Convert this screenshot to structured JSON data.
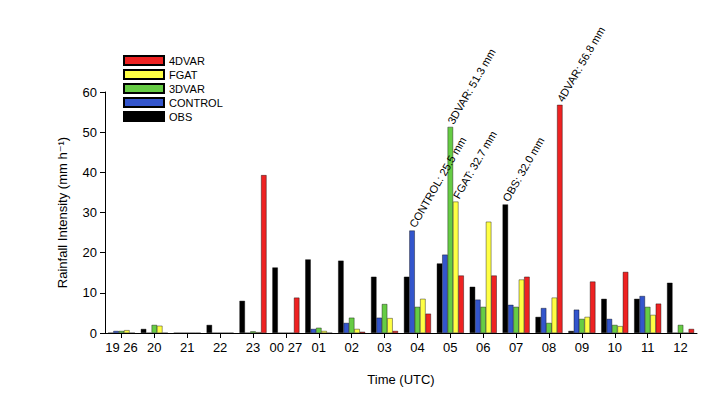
{
  "chart_data": {
    "type": "bar",
    "x_label": "Time (UTC)",
    "y_label": "Rainfall Intensity (mm h⁻¹)",
    "categories": [
      "19 26",
      "20",
      "21",
      "22",
      "23",
      "00 27",
      "01",
      "02",
      "03",
      "04",
      "05",
      "06",
      "07",
      "08",
      "09",
      "10",
      "11",
      "12"
    ],
    "series": [
      {
        "name": "OBS",
        "color": "#000000",
        "values": [
          0,
          1.0,
          0,
          2.0,
          8.0,
          16.3,
          18.3,
          18.0,
          14.0,
          14.0,
          17.3,
          11.5,
          32.0,
          4.0,
          0.5,
          8.5,
          8.5,
          12.5
        ]
      },
      {
        "name": "CONTROL",
        "color": "#3355cc",
        "values": [
          0.5,
          0,
          0,
          0,
          0,
          0,
          1.0,
          2.5,
          3.8,
          25.5,
          19.5,
          8.3,
          7.0,
          6.2,
          5.8,
          3.5,
          9.2,
          0
        ]
      },
      {
        "name": "3DVAR",
        "color": "#66cc44",
        "values": [
          0.5,
          2.0,
          0,
          0,
          0.4,
          0,
          1.3,
          3.8,
          7.2,
          6.5,
          51.3,
          6.5,
          6.5,
          2.5,
          3.5,
          2.0,
          6.5,
          2.0
        ]
      },
      {
        "name": "FGAT",
        "color": "#ffff44",
        "values": [
          0.7,
          1.8,
          0,
          0,
          0.2,
          0,
          0.5,
          1.0,
          3.7,
          8.5,
          32.7,
          27.7,
          13.3,
          8.8,
          4.0,
          1.7,
          4.5,
          0
        ]
      },
      {
        "name": "4DVAR",
        "color": "#ee2222",
        "values": [
          0,
          0,
          0,
          0,
          39.3,
          8.8,
          0,
          0.3,
          0.5,
          4.8,
          14.3,
          14.3,
          14.0,
          56.8,
          12.8,
          15.2,
          7.3,
          1.0
        ]
      }
    ],
    "annotations": [
      {
        "text": "CONTROL: 25.5 mm",
        "series": "CONTROL",
        "category": "04"
      },
      {
        "text": "3DVAR: 51.3 mm",
        "series": "3DVAR",
        "category": "05"
      },
      {
        "text": "FGAT: 32.7 mm",
        "series": "FGAT",
        "category": "05"
      },
      {
        "text": "OBS: 32.0 mm",
        "series": "OBS",
        "category": "07"
      },
      {
        "text": "4DVAR: 56.8 mm",
        "series": "4DVAR",
        "category": "08"
      }
    ],
    "ylim": [
      0,
      60
    ],
    "yticks": [
      0,
      10,
      20,
      30,
      40,
      50,
      60
    ],
    "grid": false,
    "legend": "upper left"
  }
}
